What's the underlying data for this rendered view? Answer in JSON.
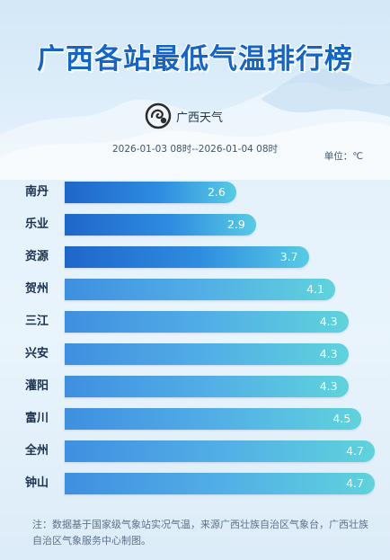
{
  "header": {
    "title": "广西各站最低气温排行榜",
    "brand_name": "广西天气",
    "time_range": "2026-01-03 08时--2026-01-04 08时",
    "unit": "单位：℃"
  },
  "chart_data": {
    "type": "bar",
    "orientation": "horizontal",
    "title": "广西各站最低气温排行榜",
    "categories": [
      "南丹",
      "乐业",
      "资源",
      "贺州",
      "三江",
      "兴安",
      "灌阳",
      "富川",
      "全州",
      "钟山"
    ],
    "values": [
      2.6,
      2.9,
      3.7,
      4.1,
      4.3,
      4.3,
      4.3,
      4.5,
      4.7,
      4.7
    ],
    "value_labels": [
      "2.6",
      "2.9",
      "3.7",
      "4.1",
      "4.3",
      "4.3",
      "4.3",
      "4.5",
      "4.7",
      "4.7"
    ],
    "unit": "℃",
    "grid": false,
    "legend": "none",
    "colors": {
      "top3": "#1f66c9",
      "rest": "#3f8fe0",
      "end": "#5fd3dc"
    }
  },
  "footer": {
    "note": "注：数据基于国家级气象站实况气温，来源广西壮族自治区气象台，广西壮族自治区气象服务中心制图。"
  }
}
